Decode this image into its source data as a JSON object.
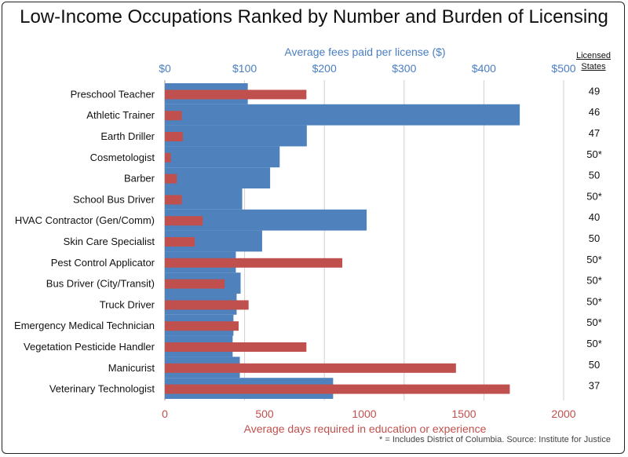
{
  "title": "Low-Income Occupations Ranked by Number and Burden of Licensing",
  "source_note": "* = Includes District of Columbia. Source: Institute for Justice",
  "states_header": [
    "Licensed",
    "States"
  ],
  "colors": {
    "fees": "#4f81bd",
    "days": "#c0504d",
    "fees_text": "#4a7ec2",
    "days_text": "#c0504d"
  },
  "chart_data": {
    "type": "bar",
    "orientation": "horizontal",
    "title": "Low-Income Occupations Ranked by Number and Burden of Licensing",
    "categories": [
      "Preschool Teacher",
      "Athletic Trainer",
      "Earth Driller",
      "Cosmetologist",
      "Barber",
      "School Bus Driver",
      "HVAC Contractor (Gen/Comm)",
      "Skin Care Specialist",
      "Pest Control Applicator",
      "Bus Driver (City/Transit)",
      "Truck Driver",
      "Emergency Medical Technician",
      "Vegetation Pesticide Handler",
      "Manicurist",
      "Veterinary Technologist"
    ],
    "series": [
      {
        "name": "Average fees paid per license ($)",
        "axis": "top",
        "values": [
          104,
          445,
          178,
          144,
          132,
          97,
          253,
          122,
          89,
          95,
          90,
          86,
          85,
          94,
          211
        ]
      },
      {
        "name": "Average days required in education or experience",
        "axis": "bottom",
        "values": [
          710,
          85,
          90,
          30,
          60,
          85,
          190,
          150,
          890,
          300,
          420,
          370,
          710,
          1460,
          1730
        ]
      }
    ],
    "licensed_states": [
      "49",
      "46",
      "47",
      "50*",
      "50",
      "50*",
      "40",
      "50",
      "50*",
      "50*",
      "50*",
      "50*",
      "50*",
      "50",
      "37"
    ],
    "top_axis": {
      "label": "Average fees paid per license ($)",
      "range": [
        0,
        500
      ],
      "ticks": [
        "$0",
        "$100",
        "$200",
        "$300",
        "$400",
        "$500"
      ]
    },
    "bottom_axis": {
      "label": "Average  days required in education or experience",
      "range": [
        0,
        2000
      ],
      "ticks": [
        "0",
        "500",
        "1000",
        "1500",
        "2000"
      ]
    },
    "grid": true
  }
}
